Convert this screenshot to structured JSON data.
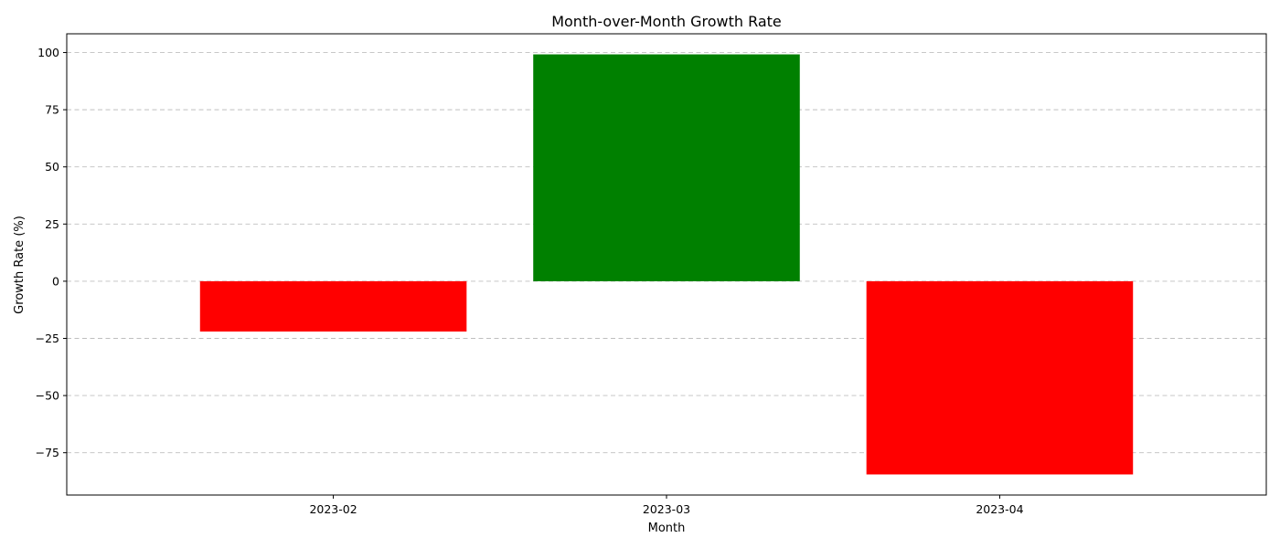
{
  "chart_data": {
    "type": "bar",
    "title": "Month-over-Month Growth Rate",
    "xlabel": "Month",
    "ylabel": "Growth Rate (%)",
    "categories": [
      "2023-02",
      "2023-03",
      "2023-04"
    ],
    "values": [
      -22,
      99.2,
      -84.5
    ],
    "bar_colors": [
      "#ff0000",
      "#008000",
      "#ff0000"
    ],
    "ylim": [
      -93.5,
      108.2
    ],
    "yticks": [
      -75,
      -50,
      -25,
      0,
      25,
      50,
      75,
      100
    ],
    "ytick_labels": [
      "−75",
      "−50",
      "−25",
      "0",
      "25",
      "50",
      "75",
      "100"
    ],
    "grid": "y-dashed",
    "legend": "none"
  }
}
